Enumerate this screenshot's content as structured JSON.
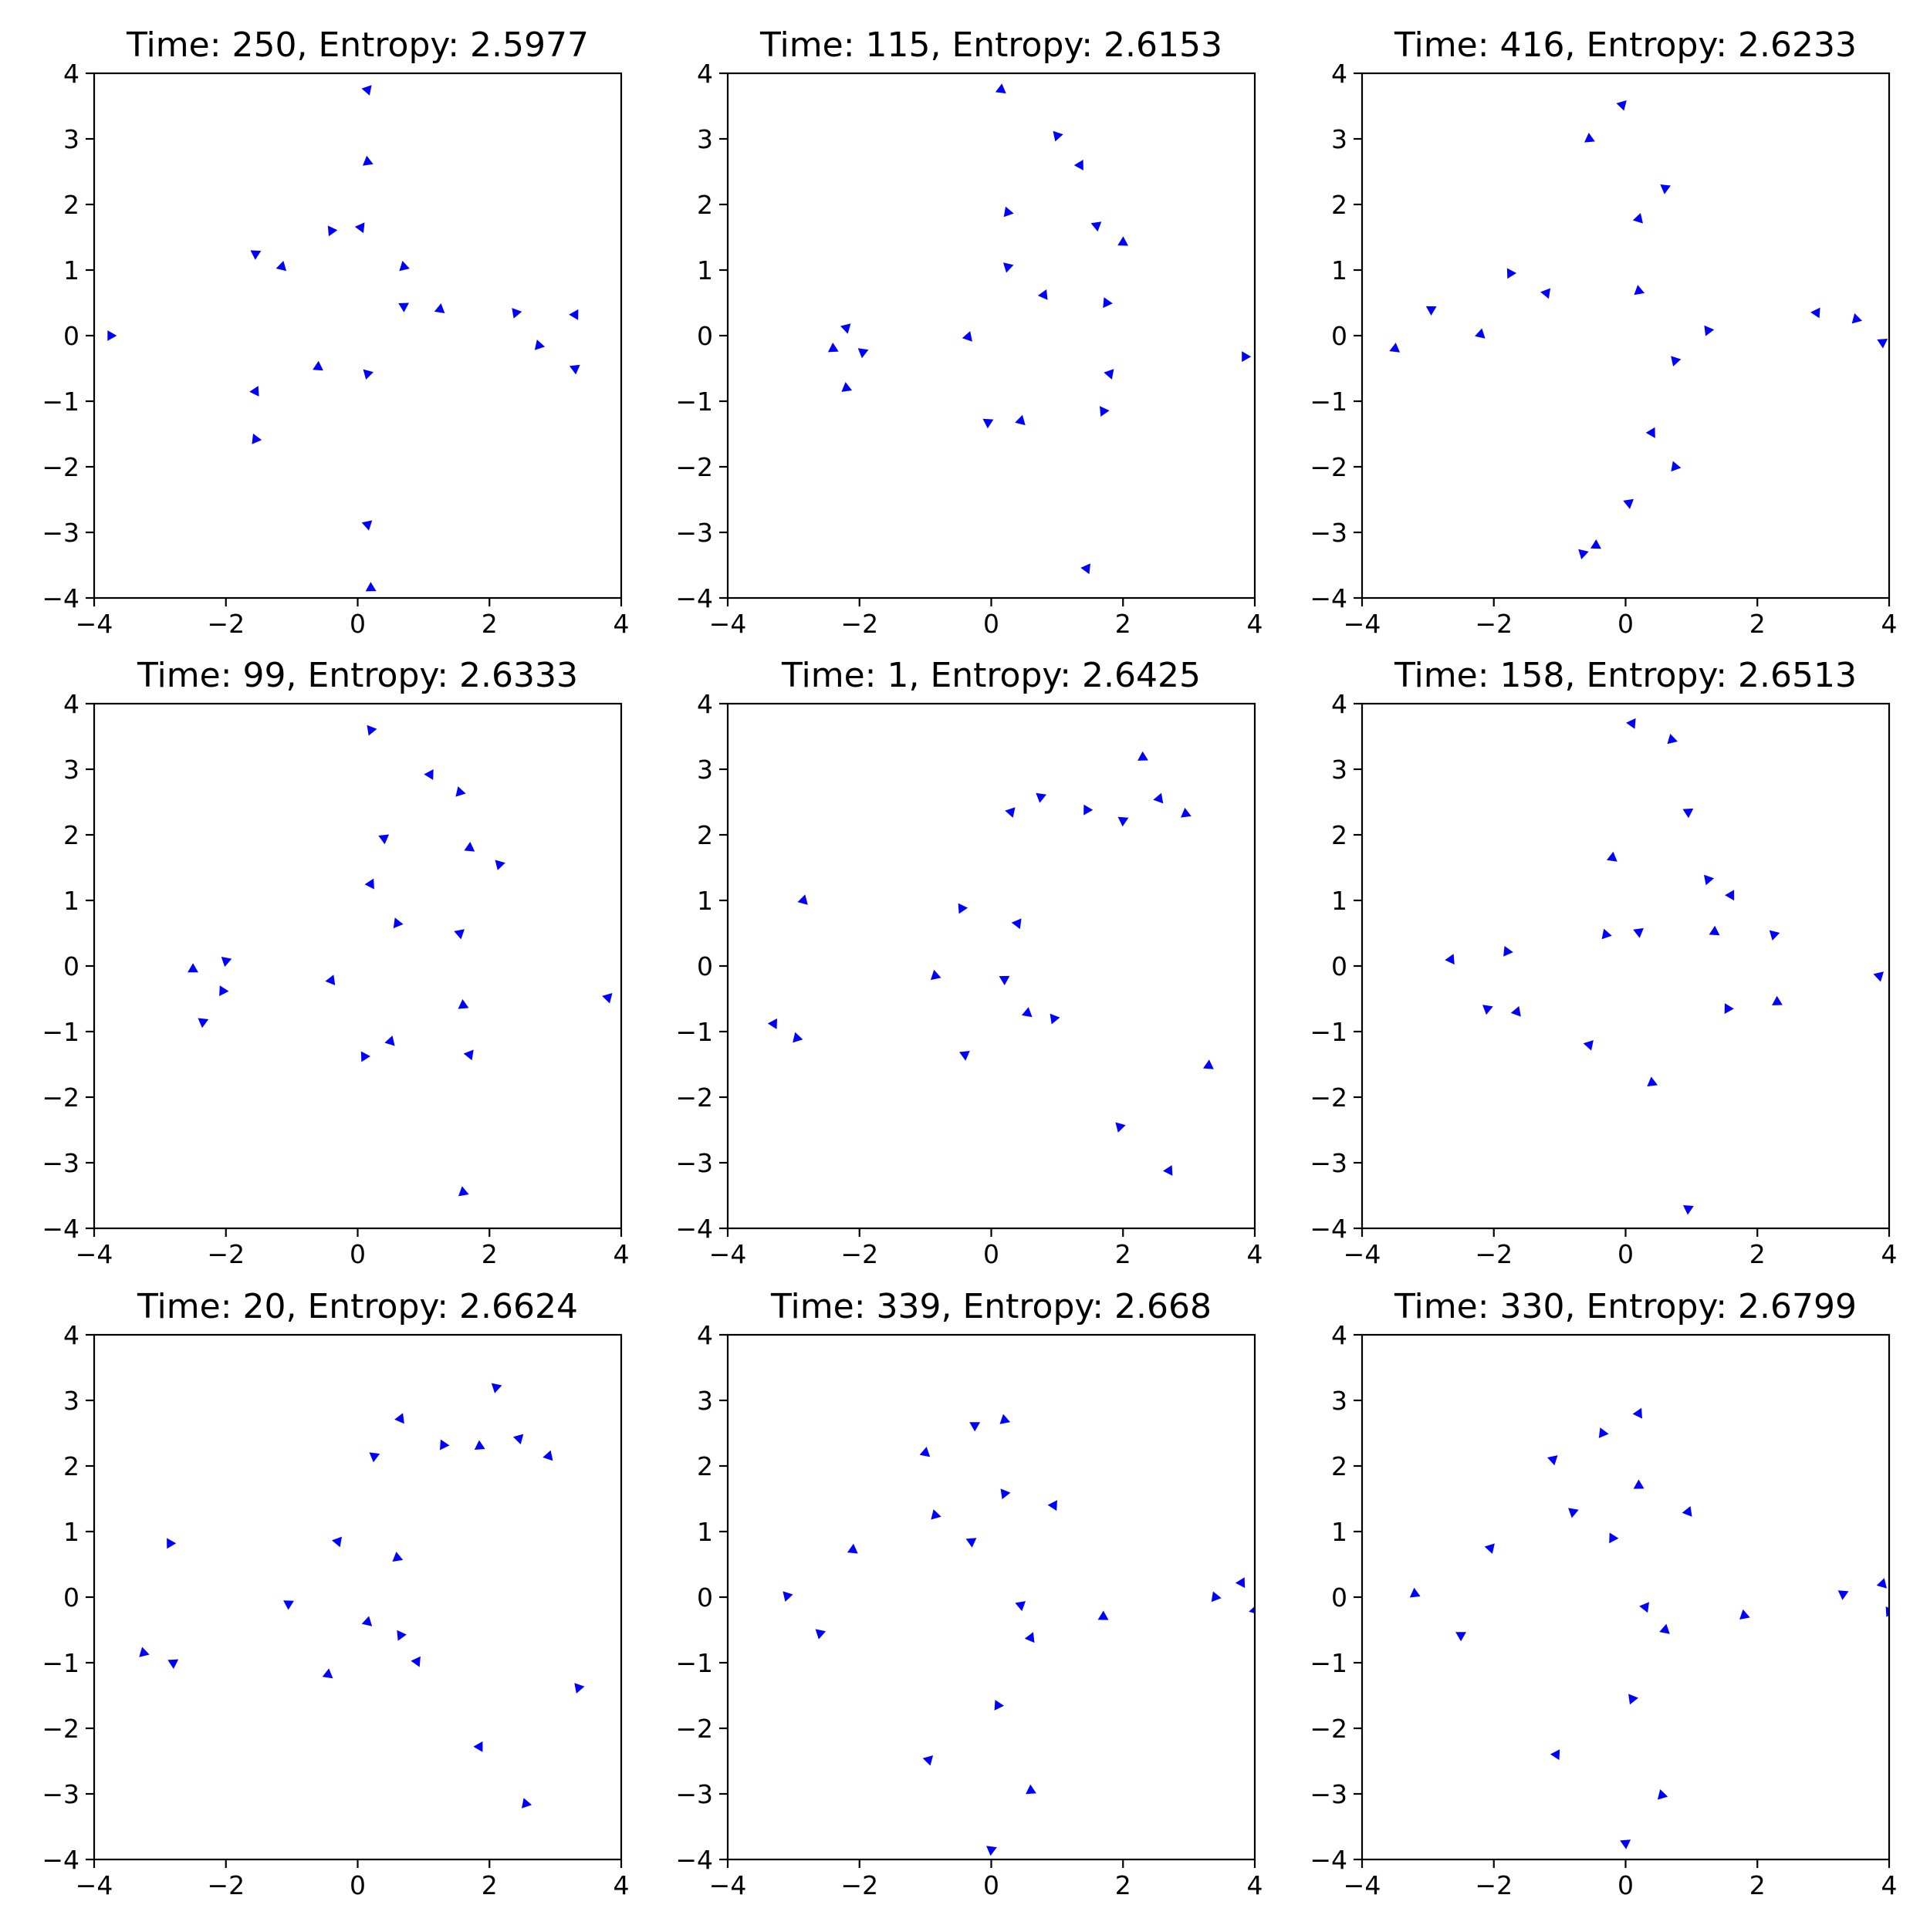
{
  "chart_data": [
    {
      "type": "scatter",
      "marker": "triangle",
      "color": "#0000ff",
      "title": "Time: 250, Entropy: 2.5977",
      "xlim": [
        -4,
        4
      ],
      "ylim": [
        -4,
        4
      ],
      "xticks": [
        "−4",
        "−2",
        "0",
        "2",
        "4"
      ],
      "yticks": [
        "4",
        "3",
        "2",
        "1",
        "0",
        "−1",
        "−2",
        "−3",
        "−4"
      ],
      "points": [
        [
          -3.75,
          0.0
        ],
        [
          0.15,
          3.75
        ],
        [
          0.15,
          2.65
        ],
        [
          -1.55,
          1.25
        ],
        [
          -1.15,
          1.05
        ],
        [
          -0.4,
          1.6
        ],
        [
          0.05,
          1.65
        ],
        [
          0.7,
          1.05
        ],
        [
          0.7,
          0.45
        ],
        [
          1.25,
          0.4
        ],
        [
          2.4,
          0.35
        ],
        [
          3.3,
          0.32
        ],
        [
          2.75,
          -0.15
        ],
        [
          3.3,
          -0.5
        ],
        [
          -0.6,
          -0.48
        ],
        [
          0.15,
          -0.58
        ],
        [
          -1.55,
          -0.85
        ],
        [
          -1.55,
          -1.58
        ],
        [
          0.15,
          -2.88
        ],
        [
          0.2,
          -3.85
        ]
      ]
    },
    {
      "type": "scatter",
      "marker": "triangle",
      "color": "#0000ff",
      "title": "Time: 115, Entropy: 2.6153",
      "xlim": [
        -4,
        4
      ],
      "ylim": [
        -4,
        4
      ],
      "xticks": [
        "−4",
        "−2",
        "0",
        "2",
        "4"
      ],
      "yticks": [
        "4",
        "3",
        "2",
        "1",
        "0",
        "−1",
        "−2",
        "−3",
        "−4"
      ],
      "points": [
        [
          0.15,
          3.75
        ],
        [
          1.0,
          3.05
        ],
        [
          1.35,
          2.6
        ],
        [
          0.25,
          1.88
        ],
        [
          1.6,
          1.68
        ],
        [
          2.0,
          1.42
        ],
        [
          0.25,
          1.05
        ],
        [
          0.8,
          0.62
        ],
        [
          1.75,
          0.5
        ],
        [
          -2.2,
          0.12
        ],
        [
          -2.4,
          -0.2
        ],
        [
          -1.95,
          -0.25
        ],
        [
          -0.35,
          -0.02
        ],
        [
          3.85,
          -0.32
        ],
        [
          1.8,
          -0.58
        ],
        [
          -2.2,
          -0.8
        ],
        [
          -0.05,
          -1.32
        ],
        [
          0.45,
          -1.3
        ],
        [
          1.7,
          -1.15
        ],
        [
          1.45,
          -3.55
        ]
      ]
    },
    {
      "type": "scatter",
      "marker": "triangle",
      "color": "#0000ff",
      "title": "Time: 416, Entropy: 2.6233",
      "xlim": [
        -4,
        4
      ],
      "ylim": [
        -4,
        4
      ],
      "xticks": [
        "−4",
        "−2",
        "0",
        "2",
        "4"
      ],
      "yticks": [
        "4",
        "3",
        "2",
        "1",
        "0",
        "−1",
        "−2",
        "−3",
        "−4"
      ],
      "points": [
        [
          -0.05,
          3.52
        ],
        [
          -0.55,
          3.0
        ],
        [
          0.6,
          2.25
        ],
        [
          0.2,
          1.78
        ],
        [
          -1.75,
          0.95
        ],
        [
          -1.2,
          0.65
        ],
        [
          0.2,
          0.68
        ],
        [
          -2.95,
          0.4
        ],
        [
          -2.2,
          0.02
        ],
        [
          1.25,
          0.08
        ],
        [
          2.9,
          0.35
        ],
        [
          3.5,
          0.25
        ],
        [
          3.9,
          -0.1
        ],
        [
          -3.5,
          -0.2
        ],
        [
          0.75,
          -0.38
        ],
        [
          0.4,
          -1.48
        ],
        [
          0.75,
          -2.0
        ],
        [
          0.05,
          -2.55
        ],
        [
          -0.45,
          -3.2
        ],
        [
          -0.65,
          -3.32
        ]
      ]
    },
    {
      "type": "scatter",
      "marker": "triangle",
      "color": "#0000ff",
      "title": "Time: 99, Entropy: 2.6333",
      "xlim": [
        -4,
        4
      ],
      "ylim": [
        -4,
        4
      ],
      "xticks": [
        "−4",
        "−2",
        "0",
        "2",
        "4"
      ],
      "yticks": [
        "4",
        "3",
        "2",
        "1",
        "0",
        "−1",
        "−2",
        "−3",
        "−4"
      ],
      "points": [
        [
          0.2,
          3.6
        ],
        [
          1.1,
          2.92
        ],
        [
          1.55,
          2.65
        ],
        [
          0.4,
          1.95
        ],
        [
          1.7,
          1.8
        ],
        [
          2.15,
          1.55
        ],
        [
          0.2,
          1.25
        ],
        [
          0.6,
          0.65
        ],
        [
          1.55,
          0.5
        ],
        [
          -2.5,
          -0.05
        ],
        [
          -2.0,
          0.08
        ],
        [
          -0.4,
          -0.22
        ],
        [
          -2.05,
          -0.38
        ],
        [
          3.8,
          -0.48
        ],
        [
          1.6,
          -0.6
        ],
        [
          -2.35,
          -0.85
        ],
        [
          0.5,
          -1.15
        ],
        [
          0.1,
          -1.38
        ],
        [
          1.7,
          -1.35
        ],
        [
          1.6,
          -3.45
        ]
      ]
    },
    {
      "type": "scatter",
      "marker": "triangle",
      "color": "#0000ff",
      "title": "Time: 1, Entropy: 2.6425",
      "xlim": [
        -4,
        4
      ],
      "ylim": [
        -4,
        4
      ],
      "xticks": [
        "−4",
        "−2",
        "0",
        "2",
        "4"
      ],
      "yticks": [
        "4",
        "3",
        "2",
        "1",
        "0",
        "−1",
        "−2",
        "−3",
        "−4"
      ],
      "points": [
        [
          2.3,
          3.18
        ],
        [
          0.75,
          2.58
        ],
        [
          2.55,
          2.55
        ],
        [
          1.45,
          2.38
        ],
        [
          0.3,
          2.35
        ],
        [
          2.95,
          2.32
        ],
        [
          2.0,
          2.22
        ],
        [
          -2.85,
          1.0
        ],
        [
          -0.45,
          0.88
        ],
        [
          0.4,
          0.65
        ],
        [
          -0.85,
          -0.15
        ],
        [
          0.2,
          -0.2
        ],
        [
          0.55,
          -0.72
        ],
        [
          0.95,
          -0.8
        ],
        [
          -3.3,
          -0.88
        ],
        [
          -2.95,
          -1.1
        ],
        [
          -0.4,
          -1.35
        ],
        [
          3.3,
          -1.52
        ],
        [
          1.95,
          -2.45
        ],
        [
          2.7,
          -3.12
        ]
      ]
    },
    {
      "type": "scatter",
      "marker": "triangle",
      "color": "#0000ff",
      "title": "Time: 158, Entropy: 2.6513",
      "xlim": [
        -4,
        4
      ],
      "ylim": [
        -4,
        4
      ],
      "xticks": [
        "−4",
        "−2",
        "0",
        "2",
        "4"
      ],
      "yticks": [
        "4",
        "3",
        "2",
        "1",
        "0",
        "−1",
        "−2",
        "−3",
        "−4"
      ],
      "points": [
        [
          0.1,
          3.7
        ],
        [
          0.7,
          3.45
        ],
        [
          0.95,
          2.35
        ],
        [
          -0.2,
          1.65
        ],
        [
          1.25,
          1.32
        ],
        [
          1.6,
          1.08
        ],
        [
          -0.3,
          0.48
        ],
        [
          0.2,
          0.52
        ],
        [
          1.35,
          0.52
        ],
        [
          2.25,
          0.48
        ],
        [
          -2.65,
          0.1
        ],
        [
          -1.8,
          0.22
        ],
        [
          3.85,
          -0.15
        ],
        [
          2.3,
          -0.55
        ],
        [
          -2.1,
          -0.65
        ],
        [
          -1.65,
          -0.7
        ],
        [
          1.55,
          -0.65
        ],
        [
          -0.55,
          -1.2
        ],
        [
          0.4,
          -1.78
        ],
        [
          0.95,
          -3.7
        ]
      ]
    },
    {
      "type": "scatter",
      "marker": "triangle",
      "color": "#0000ff",
      "title": "Time: 20, Entropy: 2.6624",
      "xlim": [
        -4,
        4
      ],
      "ylim": [
        -4,
        4
      ],
      "xticks": [
        "−4",
        "−2",
        "0",
        "2",
        "4"
      ],
      "yticks": [
        "4",
        "3",
        "2",
        "1",
        "0",
        "−1",
        "−2",
        "−3",
        "−4"
      ],
      "points": [
        [
          2.1,
          3.2
        ],
        [
          0.65,
          2.72
        ],
        [
          1.3,
          2.32
        ],
        [
          2.45,
          2.42
        ],
        [
          1.85,
          2.3
        ],
        [
          0.25,
          2.15
        ],
        [
          2.9,
          2.15
        ],
        [
          -2.85,
          0.82
        ],
        [
          -0.3,
          0.85
        ],
        [
          0.6,
          0.6
        ],
        [
          -1.05,
          -0.1
        ],
        [
          0.15,
          -0.38
        ],
        [
          0.65,
          -0.58
        ],
        [
          0.9,
          -0.98
        ],
        [
          -3.25,
          -0.85
        ],
        [
          -2.8,
          -1.0
        ],
        [
          -0.45,
          -1.18
        ],
        [
          3.35,
          -1.38
        ],
        [
          1.85,
          -2.28
        ],
        [
          2.55,
          -3.15
        ]
      ]
    },
    {
      "type": "scatter",
      "marker": "triangle",
      "color": "#0000ff",
      "title": "Time: 339, Entropy: 2.668",
      "xlim": [
        -4,
        4
      ],
      "ylim": [
        -4,
        4
      ],
      "xticks": [
        "−4",
        "−2",
        "0",
        "2",
        "4"
      ],
      "yticks": [
        "4",
        "3",
        "2",
        "1",
        "0",
        "−1",
        "−2",
        "−3",
        "−4"
      ],
      "points": [
        [
          0.2,
          2.7
        ],
        [
          -0.25,
          2.62
        ],
        [
          -1.0,
          2.2
        ],
        [
          0.2,
          1.58
        ],
        [
          0.95,
          1.4
        ],
        [
          -0.85,
          1.25
        ],
        [
          -0.3,
          0.85
        ],
        [
          -2.1,
          0.72
        ],
        [
          -3.1,
          0.02
        ],
        [
          3.8,
          0.22
        ],
        [
          3.4,
          0.0
        ],
        [
          0.45,
          -0.12
        ],
        [
          1.7,
          -0.3
        ],
        [
          -2.6,
          -0.55
        ],
        [
          0.6,
          -0.62
        ],
        [
          0.1,
          -1.65
        ],
        [
          -0.95,
          -2.48
        ],
        [
          0.6,
          -2.95
        ],
        [
          0.0,
          -3.85
        ],
        [
          4.0,
          -0.2
        ]
      ]
    },
    {
      "type": "scatter",
      "marker": "triangle",
      "color": "#0000ff",
      "title": "Time: 330, Entropy: 2.6799",
      "xlim": [
        -4,
        4
      ],
      "ylim": [
        -4,
        4
      ],
      "xticks": [
        "−4",
        "−2",
        "0",
        "2",
        "4"
      ],
      "yticks": [
        "4",
        "3",
        "2",
        "1",
        "0",
        "−1",
        "−2",
        "−3",
        "−4"
      ],
      "points": [
        [
          0.2,
          2.8
        ],
        [
          -0.35,
          2.5
        ],
        [
          -1.1,
          2.1
        ],
        [
          0.2,
          1.7
        ],
        [
          -0.8,
          1.3
        ],
        [
          0.95,
          1.3
        ],
        [
          -0.2,
          0.9
        ],
        [
          -2.05,
          0.75
        ],
        [
          -3.2,
          0.05
        ],
        [
          3.3,
          0.05
        ],
        [
          3.9,
          0.2
        ],
        [
          4.0,
          -0.22
        ],
        [
          0.3,
          -0.15
        ],
        [
          1.8,
          -0.28
        ],
        [
          -2.5,
          -0.58
        ],
        [
          0.6,
          -0.5
        ],
        [
          0.1,
          -1.55
        ],
        [
          -1.05,
          -2.4
        ],
        [
          0.55,
          -3.02
        ],
        [
          0.0,
          -3.75
        ]
      ]
    }
  ]
}
